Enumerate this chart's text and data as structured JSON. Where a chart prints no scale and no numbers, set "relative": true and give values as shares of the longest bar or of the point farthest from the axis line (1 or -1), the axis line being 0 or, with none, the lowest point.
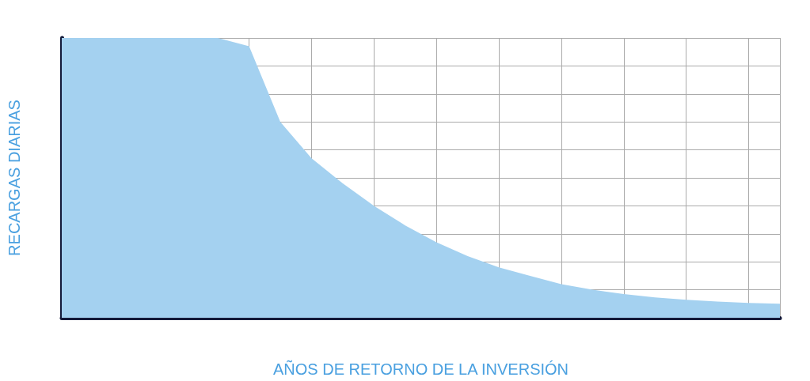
{
  "chart_data": {
    "type": "area",
    "relative": true,
    "xlabel": "AÑOS DE RETORNO DE LA INVERSIÓN",
    "ylabel": "RECARGAS DIARIAS",
    "grid": true,
    "color": "#a4d1f0",
    "categories": [
      null,
      null,
      null,
      null,
      null,
      null,
      null,
      null,
      null,
      null,
      null,
      null,
      null,
      null,
      null,
      null,
      null,
      null,
      null,
      null,
      null,
      null,
      null,
      null
    ],
    "values": [
      1,
      1,
      1,
      1,
      1,
      1,
      0.97,
      0.7,
      0.57,
      0.48,
      0.4,
      0.33,
      0.27,
      0.22,
      0.18,
      0.15,
      0.12,
      0.1,
      0.085,
      0.073,
      0.064,
      0.058,
      0.053,
      0.05
    ]
  }
}
